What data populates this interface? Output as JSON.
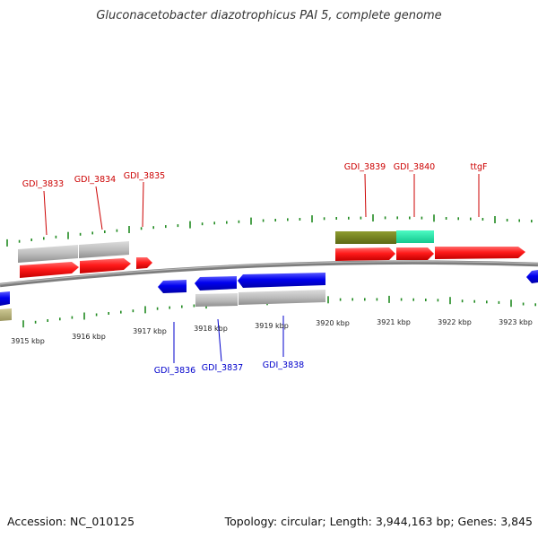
{
  "title": "Gluconacetobacter diazotrophicus PAI 5, complete genome",
  "accession": "Accession: NC_010125",
  "summary": "Topology: circular; Length: 3,944,163 bp; Genes: 3,845",
  "colors": {
    "forward_gene": "#ff1a1a",
    "reverse_gene": "#0000ee",
    "cds_grey": "#b8b8b8",
    "olive_feature": "#6e7c1c",
    "cyan_feature": "#22e8a8",
    "tan_feature": "#b5b07a",
    "backbone": "#8a8a8a",
    "tick": "#228b22",
    "forward_label": "#cc0000",
    "reverse_label": "#0000cc"
  },
  "scale": {
    "unit": "kbp",
    "labels": [
      "3915 kbp",
      "3916 kbp",
      "3917 kbp",
      "3918 kbp",
      "3919 kbp",
      "3920 kbp",
      "3921 kbp",
      "3922 kbp",
      "3923 kbp"
    ]
  },
  "forward_labels": [
    "GDI_3833",
    "GDI_3834",
    "GDI_3835",
    "GDI_3839",
    "GDI_3840",
    "ttgF"
  ],
  "reverse_labels": [
    "GDI_3836",
    "GDI_3837",
    "GDI_3838"
  ]
}
